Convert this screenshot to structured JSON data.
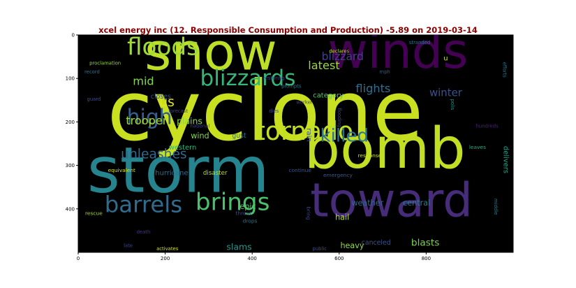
{
  "chart_data": {
    "type": "wordcloud",
    "title": "xcel energy inc (12. Responsible Consumption and Production) -5.89 on 2019-03-14",
    "xlabel": "",
    "ylabel": "",
    "xlim": [
      0,
      1000
    ],
    "ylim": [
      500,
      0
    ],
    "x_ticks": [
      0,
      200,
      400,
      600,
      800
    ],
    "y_ticks": [
      0,
      100,
      200,
      300,
      400
    ],
    "background": "#000000",
    "grid": false,
    "words": [
      {
        "text": "cyclone",
        "x": 430,
        "y": 175,
        "size": 190,
        "color": "#c8e020",
        "rotate": false
      },
      {
        "text": "storm",
        "x": 230,
        "y": 312,
        "size": 145,
        "color": "#25848e",
        "rotate": false
      },
      {
        "text": "bomb",
        "x": 705,
        "y": 262,
        "size": 130,
        "color": "#c2df23",
        "rotate": false
      },
      {
        "text": "snow",
        "x": 305,
        "y": 40,
        "size": 118,
        "color": "#bddf26",
        "rotate": false
      },
      {
        "text": "winds",
        "x": 735,
        "y": 38,
        "size": 112,
        "color": "#440154",
        "rotate": false
      },
      {
        "text": "toward",
        "x": 720,
        "y": 380,
        "size": 108,
        "color": "#472c7a",
        "rotate": false
      },
      {
        "text": "tornado",
        "x": 520,
        "y": 222,
        "size": 58,
        "color": "#c2df23",
        "rotate": false
      },
      {
        "text": "floods",
        "x": 195,
        "y": 28,
        "size": 55,
        "color": "#a0da39",
        "rotate": false
      },
      {
        "text": "brings",
        "x": 355,
        "y": 385,
        "size": 55,
        "color": "#4ac16d",
        "rotate": false
      },
      {
        "text": "barrels",
        "x": 150,
        "y": 390,
        "size": 52,
        "color": "#2f6c8e",
        "rotate": false
      },
      {
        "text": "blizzards",
        "x": 390,
        "y": 100,
        "size": 50,
        "color": "#35b779",
        "rotate": false
      },
      {
        "text": "high",
        "x": 164,
        "y": 190,
        "size": 48,
        "color": "#35608d",
        "rotate": false
      },
      {
        "text": "killed",
        "x": 612,
        "y": 232,
        "size": 42,
        "color": "#2a768e",
        "rotate": false
      },
      {
        "text": "unleashes",
        "x": 174,
        "y": 275,
        "size": 30,
        "color": "#31688e",
        "rotate": false
      },
      {
        "text": "trooper",
        "x": 157,
        "y": 197,
        "size": 26,
        "color": "#a5db36",
        "rotate": false
      },
      {
        "text": "mid",
        "x": 150,
        "y": 106,
        "size": 26,
        "color": "#84d44b",
        "rotate": false
      },
      {
        "text": "us",
        "x": 204,
        "y": 155,
        "size": 30,
        "color": "#e2e418",
        "rotate": false
      },
      {
        "text": "latest",
        "x": 565,
        "y": 70,
        "size": 26,
        "color": "#9bd93c",
        "rotate": false
      },
      {
        "text": "blizzard",
        "x": 608,
        "y": 50,
        "size": 25,
        "color": "#424086",
        "rotate": false
      },
      {
        "text": "flights",
        "x": 678,
        "y": 123,
        "size": 26,
        "color": "#2e6f8e",
        "rotate": false
      },
      {
        "text": "winter",
        "x": 845,
        "y": 133,
        "size": 24,
        "color": "#3b518b",
        "rotate": false
      },
      {
        "text": "category",
        "x": 575,
        "y": 140,
        "size": 16,
        "color": "#56c667",
        "rotate": false
      },
      {
        "text": "weather",
        "x": 665,
        "y": 387,
        "size": 18,
        "color": "#31688e",
        "rotate": false
      },
      {
        "text": "central",
        "x": 778,
        "y": 387,
        "size": 18,
        "color": "#287c8e",
        "rotate": false
      },
      {
        "text": "blasts",
        "x": 798,
        "y": 478,
        "size": 22,
        "color": "#7ad151",
        "rotate": false
      },
      {
        "text": "canceled",
        "x": 685,
        "y": 478,
        "size": 15,
        "color": "#3b528b",
        "rotate": false
      },
      {
        "text": "heavy",
        "x": 630,
        "y": 485,
        "size": 18,
        "color": "#95d840",
        "rotate": false
      },
      {
        "text": "slams",
        "x": 370,
        "y": 487,
        "size": 20,
        "color": "#1f988b",
        "rotate": false
      },
      {
        "text": "epic",
        "x": 390,
        "y": 395,
        "size": 18,
        "color": "#54c568",
        "rotate": false
      },
      {
        "text": "hail",
        "x": 607,
        "y": 420,
        "size": 18,
        "color": "#b0dd2f",
        "rotate": false
      },
      {
        "text": "plains",
        "x": 256,
        "y": 198,
        "size": 20,
        "color": "#89d548",
        "rotate": false
      },
      {
        "text": "wind",
        "x": 280,
        "y": 232,
        "size": 18,
        "color": "#86d549",
        "rotate": false
      },
      {
        "text": "western",
        "x": 240,
        "y": 260,
        "size": 16,
        "color": "#2db27d",
        "rotate": false
      },
      {
        "text": "hurricane",
        "x": 215,
        "y": 318,
        "size": 16,
        "color": "#2e6e8e",
        "rotate": false
      },
      {
        "text": "disaster",
        "x": 315,
        "y": 318,
        "size": 14,
        "color": "#b8de29",
        "rotate": false
      },
      {
        "text": "closes",
        "x": 190,
        "y": 142,
        "size": 15,
        "color": "#3b528b",
        "rotate": false
      },
      {
        "text": "gust",
        "x": 370,
        "y": 232,
        "size": 15,
        "color": "#2c728e",
        "rotate": false
      },
      {
        "text": "rain",
        "x": 530,
        "y": 230,
        "size": 16,
        "color": "#39568c",
        "rotate": true
      },
      {
        "text": "delivers",
        "x": 982,
        "y": 287,
        "size": 16,
        "color": "#1fa088",
        "rotate": true
      },
      {
        "text": "response",
        "x": 670,
        "y": 277,
        "size": 12,
        "color": "#d0e11c",
        "rotate": false
      },
      {
        "text": "leaves",
        "x": 918,
        "y": 258,
        "size": 12,
        "color": "#25ab82",
        "rotate": false
      },
      {
        "text": "emergency",
        "x": 597,
        "y": 322,
        "size": 12,
        "color": "#38588c",
        "rotate": false
      },
      {
        "text": "continue",
        "x": 510,
        "y": 311,
        "size": 12,
        "color": "#38598c",
        "rotate": false
      },
      {
        "text": "equivalent",
        "x": 100,
        "y": 311,
        "size": 12,
        "color": "#d8e219",
        "rotate": false
      },
      {
        "text": "rescue",
        "x": 36,
        "y": 410,
        "size": 12,
        "color": "#a8db34",
        "rotate": false
      },
      {
        "text": "threat",
        "x": 380,
        "y": 410,
        "size": 12,
        "color": "#3e4a89",
        "rotate": false
      },
      {
        "text": "drops",
        "x": 395,
        "y": 428,
        "size": 12,
        "color": "#2c738e",
        "rotate": false
      },
      {
        "text": "bring",
        "x": 530,
        "y": 410,
        "size": 12,
        "color": "#3f4788",
        "rotate": true
      },
      {
        "text": "death",
        "x": 150,
        "y": 453,
        "size": 11,
        "color": "#46337f",
        "rotate": false
      },
      {
        "text": "late",
        "x": 115,
        "y": 485,
        "size": 11,
        "color": "#3f4889",
        "rotate": false
      },
      {
        "text": "activates",
        "x": 205,
        "y": 492,
        "size": 11,
        "color": "#d2e21b",
        "rotate": false
      },
      {
        "text": "public",
        "x": 555,
        "y": 492,
        "size": 11,
        "color": "#3c4f8a",
        "rotate": false
      },
      {
        "text": "middle",
        "x": 960,
        "y": 395,
        "size": 11,
        "color": "#2a778e",
        "rotate": true
      },
      {
        "text": "hundreds",
        "x": 940,
        "y": 210,
        "size": 11,
        "color": "#482576",
        "rotate": false
      },
      {
        "text": "polis",
        "x": 860,
        "y": 160,
        "size": 11,
        "color": "#1f958b",
        "rotate": true
      },
      {
        "text": "flooding",
        "x": 600,
        "y": 190,
        "size": 11,
        "color": "#404588",
        "rotate": true
      },
      {
        "text": "forecast",
        "x": 230,
        "y": 175,
        "size": 11,
        "color": "#3f4788",
        "rotate": false
      },
      {
        "text": "national",
        "x": 280,
        "y": 210,
        "size": 11,
        "color": "#414487",
        "rotate": false
      },
      {
        "text": "dies",
        "x": 450,
        "y": 175,
        "size": 11,
        "color": "#3d4d8a",
        "rotate": false
      },
      {
        "text": "worker",
        "x": 520,
        "y": 155,
        "size": 11,
        "color": "#453781",
        "rotate": false
      },
      {
        "text": "guard",
        "x": 36,
        "y": 148,
        "size": 11,
        "color": "#3e4c8a",
        "rotate": false
      },
      {
        "text": "record",
        "x": 32,
        "y": 85,
        "size": 11,
        "color": "#2d708e",
        "rotate": false
      },
      {
        "text": "proclamation",
        "x": 62,
        "y": 65,
        "size": 11,
        "color": "#97d83f",
        "rotate": false
      },
      {
        "text": "restoring",
        "x": 450,
        "y": 100,
        "size": 11,
        "color": "#3e4989",
        "rotate": false
      },
      {
        "text": "prompts",
        "x": 490,
        "y": 118,
        "size": 11,
        "color": "#2b758e",
        "rotate": false
      },
      {
        "text": "declares",
        "x": 600,
        "y": 38,
        "size": 11,
        "color": "#c0df25",
        "rotate": false
      },
      {
        "text": "stranded",
        "x": 785,
        "y": 18,
        "size": 11,
        "color": "#2c718e",
        "rotate": false
      },
      {
        "text": "u",
        "x": 845,
        "y": 55,
        "size": 16,
        "color": "#c5e021",
        "rotate": false
      },
      {
        "text": "mph",
        "x": 705,
        "y": 85,
        "size": 11,
        "color": "#365d8d",
        "rotate": false
      },
      {
        "text": "efforts",
        "x": 980,
        "y": 80,
        "size": 11,
        "color": "#2a788e",
        "rotate": true
      }
    ]
  }
}
